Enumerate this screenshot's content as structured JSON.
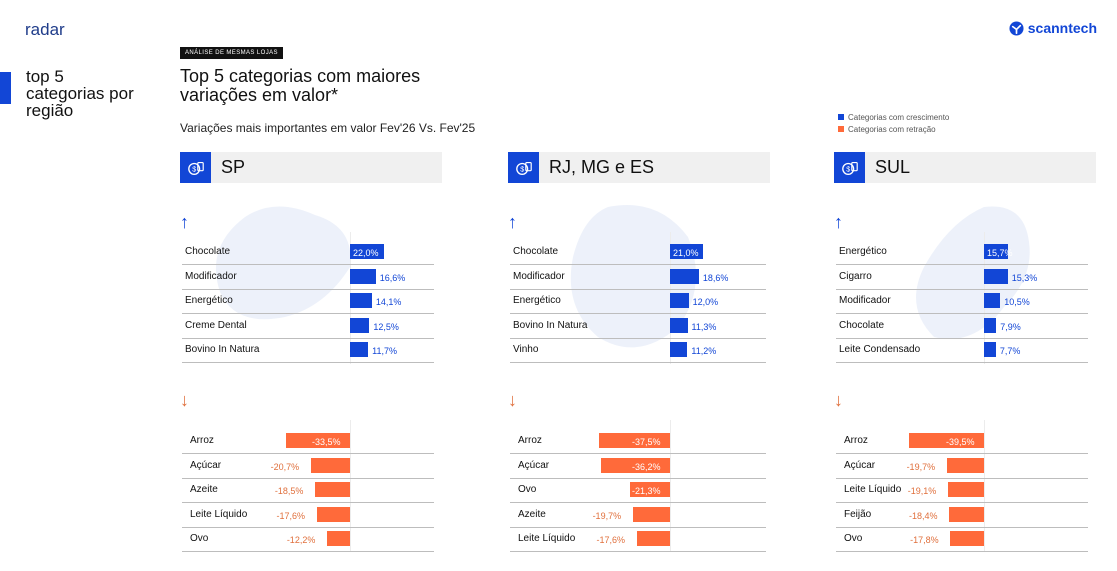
{
  "brand": "radar",
  "logo": "scanntech",
  "side_title": "top 5 categorias por região",
  "tag": "ANÁLISE DE MESMAS LOJAS",
  "title": "Top 5 categorias com maiores variações em valor*",
  "subtitle": "Variações mais importantes em valor Fev'26 Vs. Fev'25",
  "legend": [
    {
      "label": "Categorias com crescimento",
      "color": "#1246d6"
    },
    {
      "label": "Categorias com retração",
      "color": "#ff6a3a"
    }
  ],
  "icons": {
    "region": "money-bag-icon",
    "up": "arrow-up-icon",
    "down": "arrow-down-icon",
    "logo": "scanntech-logo-icon"
  },
  "chart_data": [
    {
      "type": "bar",
      "title": "SP",
      "series": [
        {
          "name": "Categorias com crescimento",
          "categories": [
            "Chocolate",
            "Modificador",
            "Energético",
            "Creme Dental",
            "Bovino In Natura"
          ],
          "values": [
            22.0,
            16.6,
            14.1,
            12.5,
            11.7
          ],
          "labels": [
            "22,0%",
            "16,6%",
            "14,1%",
            "12,5%",
            "11,7%"
          ]
        },
        {
          "name": "Categorias com retração",
          "categories": [
            "Arroz",
            "Açúcar",
            "Azeite",
            "Leite Líquido",
            "Ovo"
          ],
          "values": [
            -33.5,
            -20.7,
            -18.5,
            -17.6,
            -12.2
          ],
          "labels": [
            "-33,5%",
            "-20,7%",
            "-18,5%",
            "-17,6%",
            "-12,2%"
          ]
        }
      ]
    },
    {
      "type": "bar",
      "title": "RJ, MG e ES",
      "series": [
        {
          "name": "Categorias com crescimento",
          "categories": [
            "Chocolate",
            "Modificador",
            "Energético",
            "Bovino In Natura",
            "Vinho"
          ],
          "values": [
            21.0,
            18.6,
            12.0,
            11.3,
            11.2
          ],
          "labels": [
            "21,0%",
            "18,6%",
            "12,0%",
            "11,3%",
            "11,2%"
          ]
        },
        {
          "name": "Categorias com retração",
          "categories": [
            "Arroz",
            "Açúcar",
            "Ovo",
            "Azeite",
            "Leite Líquido"
          ],
          "values": [
            -37.5,
            -36.2,
            -21.3,
            -19.7,
            -17.6
          ],
          "labels": [
            "-37,5%",
            "-36,2%",
            "-21,3%",
            "-19,7%",
            "-17,6%"
          ]
        }
      ]
    },
    {
      "type": "bar",
      "title": "SUL",
      "series": [
        {
          "name": "Categorias com crescimento",
          "categories": [
            "Energético",
            "Cigarro",
            "Modificador",
            "Chocolate",
            "Leite Condensado"
          ],
          "values": [
            15.7,
            15.3,
            10.5,
            7.9,
            7.7
          ],
          "labels": [
            "15,7%",
            "15,3%",
            "10,5%",
            "7,9%",
            "7,7%"
          ]
        },
        {
          "name": "Categorias com retração",
          "categories": [
            "Arroz",
            "Açúcar",
            "Leite Líquido",
            "Feijão",
            "Ovo"
          ],
          "values": [
            -39.5,
            -19.7,
            -19.1,
            -18.4,
            -17.8
          ],
          "labels": [
            "-39,5%",
            "-19,7%",
            "-19,1%",
            "-18,4%",
            "-17,8%"
          ]
        }
      ]
    }
  ]
}
